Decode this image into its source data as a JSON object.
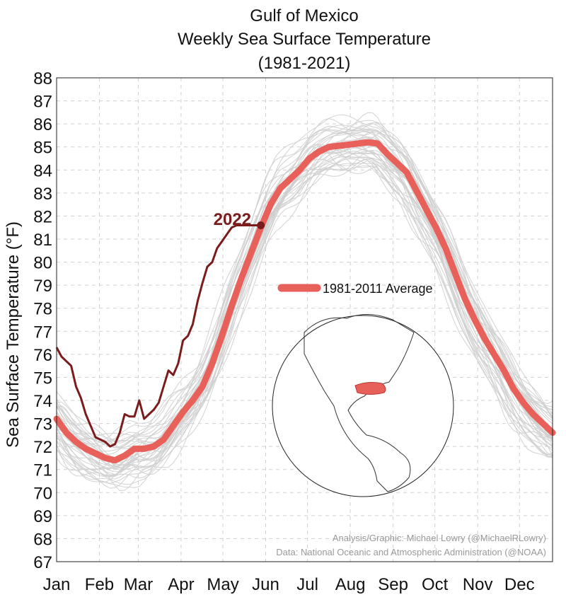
{
  "chart_data": {
    "type": "line",
    "title": "Gulf of Mexico",
    "subtitle": "Weekly Sea Surface Temperature",
    "date_range": "(1981-2021)",
    "ylabel": "Sea Surface Temperature (°F)",
    "xlabel": "",
    "ylim": [
      67,
      88
    ],
    "y_ticks": [
      67,
      68,
      69,
      70,
      71,
      72,
      73,
      74,
      75,
      76,
      77,
      78,
      79,
      80,
      81,
      82,
      83,
      84,
      85,
      86,
      87,
      88
    ],
    "xlim": [
      1,
      52
    ],
    "x_unit": "week of year",
    "month_labels": [
      {
        "label": "Jan",
        "week": 1
      },
      {
        "label": "Feb",
        "week": 5.4
      },
      {
        "label": "Mar",
        "week": 9.4
      },
      {
        "label": "Apr",
        "week": 13.8
      },
      {
        "label": "May",
        "week": 18.1
      },
      {
        "label": "Jun",
        "week": 22.5
      },
      {
        "label": "Jul",
        "week": 26.8
      },
      {
        "label": "Aug",
        "week": 31.2
      },
      {
        "label": "Sep",
        "week": 35.6
      },
      {
        "label": "Oct",
        "week": 39.9
      },
      {
        "label": "Nov",
        "week": 44.3
      },
      {
        "label": "Dec",
        "week": 48.6
      }
    ],
    "grid": true,
    "legend_position": "center",
    "series": [
      {
        "name": "1981-2011 Average",
        "color": "#e8605a",
        "x": [
          1,
          2,
          3,
          4,
          5,
          6,
          7,
          8,
          9,
          10,
          11,
          12,
          13,
          14,
          15,
          16,
          17,
          18,
          19,
          20,
          21,
          22,
          23,
          24,
          25,
          26,
          27,
          28,
          29,
          30,
          31,
          32,
          33,
          34,
          35,
          36,
          37,
          38,
          39,
          40,
          41,
          42,
          43,
          44,
          45,
          46,
          47,
          48,
          49,
          50,
          51,
          52
        ],
        "y": [
          73.2,
          72.6,
          72.2,
          71.9,
          71.7,
          71.5,
          71.4,
          71.6,
          71.9,
          71.9,
          72.0,
          72.3,
          72.9,
          73.5,
          74.0,
          74.6,
          75.6,
          76.8,
          78.1,
          79.3,
          80.4,
          81.5,
          82.5,
          83.2,
          83.6,
          84.0,
          84.5,
          84.8,
          85.0,
          85.05,
          85.1,
          85.15,
          85.2,
          85.15,
          84.7,
          84.3,
          83.9,
          83.1,
          82.3,
          81.5,
          80.6,
          79.5,
          78.4,
          77.5,
          76.7,
          76.0,
          75.3,
          74.5,
          73.9,
          73.4,
          73.0,
          72.6
        ]
      },
      {
        "name": "2022",
        "color": "#7b1c1c",
        "x": [
          1,
          1.5,
          2,
          2.5,
          3,
          3.5,
          4,
          4.5,
          5,
          5.5,
          6,
          6.5,
          7,
          7.5,
          8,
          8.5,
          9,
          9.5,
          10,
          10.5,
          11,
          11.5,
          12,
          12.5,
          13,
          13.5,
          14,
          14.5,
          15,
          15.5,
          16,
          16.5,
          17,
          17.5,
          18,
          18.5,
          19,
          19.5,
          20,
          20.5,
          21,
          21.5,
          22
        ],
        "y": [
          76.3,
          75.9,
          75.7,
          75.5,
          74.6,
          74.1,
          73.4,
          72.9,
          72.4,
          72.3,
          72.2,
          72.0,
          72.1,
          72.6,
          73.4,
          73.3,
          73.3,
          74.0,
          73.2,
          73.4,
          73.6,
          73.9,
          74.6,
          75.3,
          75.1,
          75.6,
          76.6,
          76.8,
          77.3,
          78.3,
          79.1,
          79.8,
          80.0,
          80.6,
          80.9,
          81.2,
          81.5,
          81.6,
          81.6,
          81.6,
          81.6,
          81.6,
          81.6
        ]
      }
    ],
    "historical_years_color": "#cfcfcf",
    "credits": [
      "Analysis/Graphic: Michael Lowry (@MichaelRLowry)",
      "Data: National Oceanic and Atmospheric Administration (@NOAA)"
    ]
  }
}
